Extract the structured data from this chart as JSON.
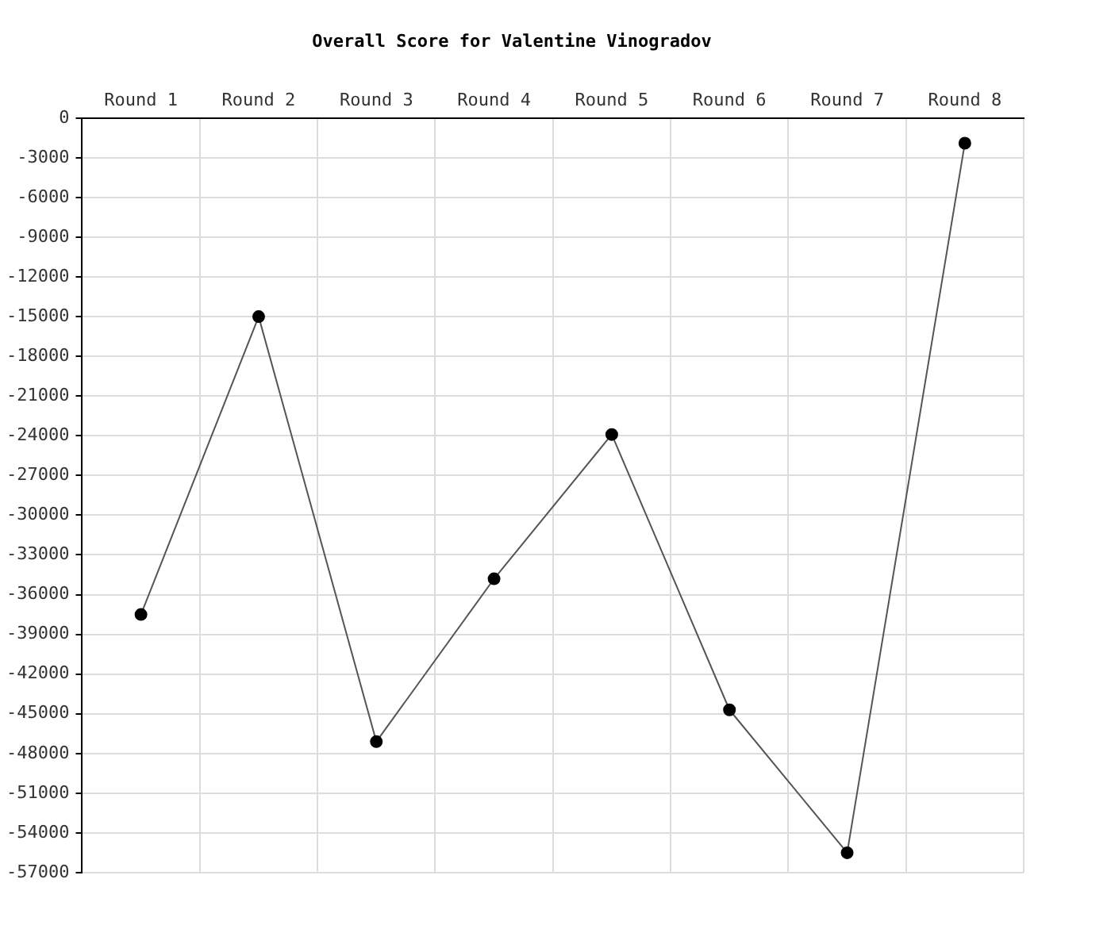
{
  "chart_data": {
    "type": "line",
    "title": "Overall Score for Valentine Vinogradov",
    "categories": [
      "Round 1",
      "Round 2",
      "Round 3",
      "Round 4",
      "Round 5",
      "Round 6",
      "Round 7",
      "Round 8"
    ],
    "series": [
      {
        "color": "#555555",
        "values": [
          -37500,
          -15000,
          -47100,
          -34800,
          -23900,
          -44700,
          -55500,
          -1900
        ]
      }
    ],
    "ylim": [
      -57000,
      0
    ],
    "yticks": [
      0,
      -3000,
      -6000,
      -9000,
      -12000,
      -15000,
      -18000,
      -21000,
      -24000,
      -27000,
      -30000,
      -33000,
      -36000,
      -39000,
      -42000,
      -45000,
      -48000,
      -51000,
      -54000,
      -57000
    ],
    "grid": true,
    "marker": "circle",
    "line_style": "solid",
    "legend": false
  }
}
